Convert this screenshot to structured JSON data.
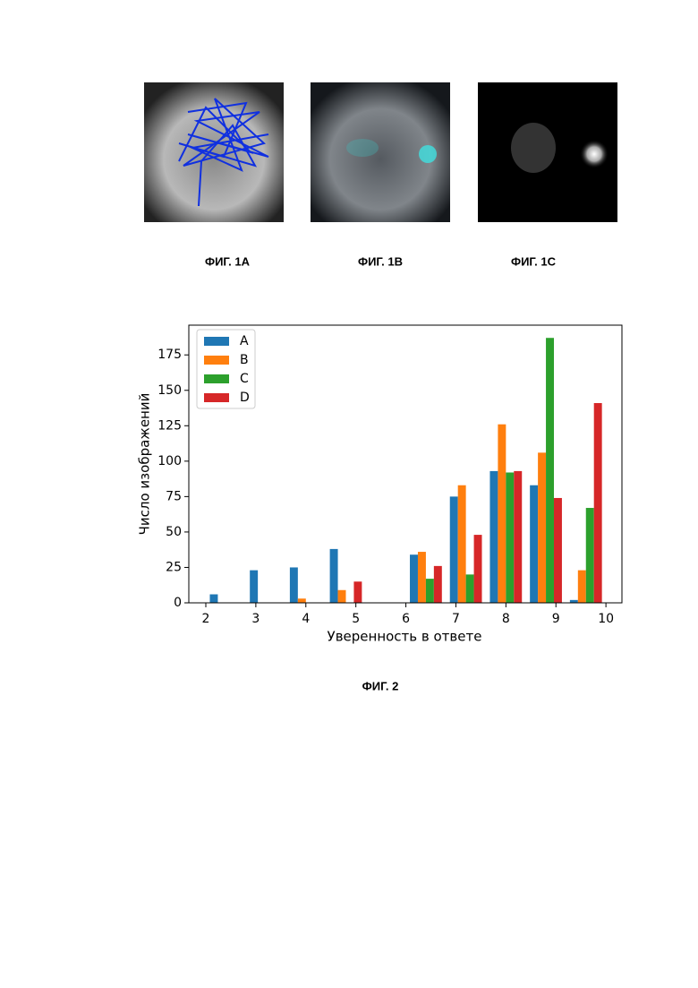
{
  "figures": [
    {
      "caption": "ФИГ. 1А"
    },
    {
      "caption": "ФИГ. 1В"
    },
    {
      "caption": "ФИГ. 1С"
    }
  ],
  "chart_caption": "ФИГ. 2",
  "chart_data": {
    "type": "histogram",
    "x_label": "Уверенность в ответе",
    "y_label": "Число изображений",
    "bins": [
      2,
      2.8,
      3.6,
      4.4,
      5.2,
      6.0,
      6.8,
      7.6,
      8.4,
      9.2,
      10
    ],
    "series": [
      {
        "name": "A",
        "color": "#1f77b4",
        "values": [
          6,
          23,
          25,
          38,
          0,
          34,
          75,
          93,
          83,
          2
        ]
      },
      {
        "name": "B",
        "color": "#ff7f0e",
        "values": [
          0,
          0,
          3,
          9,
          0,
          36,
          83,
          126,
          106,
          23
        ]
      },
      {
        "name": "C",
        "color": "#2ca02c",
        "values": [
          0,
          0,
          0,
          0,
          0,
          17,
          20,
          92,
          187,
          67
        ]
      },
      {
        "name": "D",
        "color": "#d62728",
        "values": [
          0,
          0,
          0,
          15,
          0,
          26,
          48,
          93,
          74,
          141
        ]
      }
    ],
    "xlim": [
      1.66,
      10.32
    ],
    "ylim": [
      0,
      196
    ],
    "xticks": [
      2,
      3,
      4,
      5,
      6,
      7,
      8,
      9,
      10
    ],
    "yticks": [
      0,
      25,
      50,
      75,
      100,
      125,
      150,
      175
    ],
    "legend": "upper left"
  }
}
